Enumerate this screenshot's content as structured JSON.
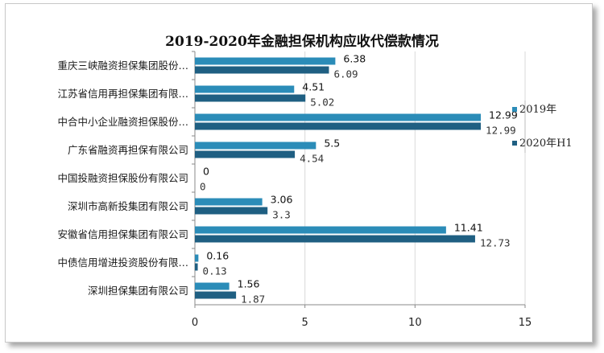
{
  "chart_data": {
    "type": "bar",
    "orientation": "horizontal",
    "title": "2019-2020年金融担保机构应收代偿款情况",
    "categories": [
      "重庆三峡融资担保集团股份…",
      "江苏省信用再担保集团有限…",
      "中合中小企业融资担保股份…",
      "广东省融资再担保有限公司",
      "中国投融资担保股份有限公司",
      "深圳市高新投集团有限公司",
      "安徽省信用担保集团有限公司",
      "中债信用增进投资股份有限…",
      "深圳担保集团有限公司"
    ],
    "series": [
      {
        "name": "2019年",
        "color": "#2b8cb8",
        "values": [
          6.38,
          4.51,
          12.99,
          5.5,
          0,
          3.06,
          11.41,
          0.16,
          1.56
        ],
        "labels": [
          "6.38",
          "4.51",
          "12.99",
          "5.5",
          "0",
          "3.06",
          "11.41",
          "0.16",
          "1.56"
        ]
      },
      {
        "name": "2020年H1",
        "color": "#1f5f82",
        "values": [
          6.09,
          5.02,
          12.99,
          4.54,
          0,
          3.3,
          12.73,
          0.13,
          1.87
        ],
        "labels": [
          "6.09",
          "5.02",
          "12.99",
          "4.54",
          "0",
          "3.3",
          "12.73",
          "0.13",
          "1.87"
        ]
      }
    ],
    "xlim": [
      0,
      15
    ],
    "xticks": [
      "0",
      "5",
      "10",
      "15"
    ],
    "grid": true,
    "legend_position": "right"
  }
}
